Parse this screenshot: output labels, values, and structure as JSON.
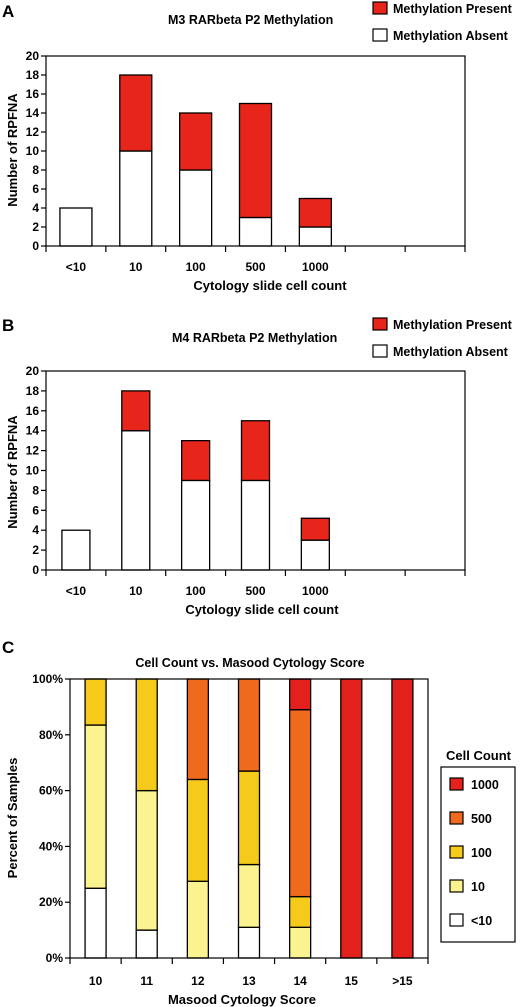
{
  "panels": [
    {
      "letter": "A",
      "chart_data": {
        "type": "bar",
        "stacked": true,
        "title": "M3 RARbeta P2 Methylation",
        "xlabel": "Cytology slide cell count",
        "ylabel": "Number of RPFNA",
        "categories": [
          "<10",
          "10",
          "100",
          "500",
          "1000"
        ],
        "empty_slots": 2,
        "ylim": [
          0,
          20
        ],
        "yticks": [
          "0",
          "2",
          "4",
          "6",
          "8",
          "10",
          "12",
          "14",
          "16",
          "18",
          "20"
        ],
        "legend_position": "top-right",
        "series": [
          {
            "name": "Methylation Absent",
            "color": "#ffffff",
            "values": [
              4,
              10,
              8,
              3,
              2
            ]
          },
          {
            "name": "Methylation Present",
            "color": "#e8251b",
            "values": [
              0,
              8,
              6,
              12,
              3
            ]
          }
        ]
      }
    },
    {
      "letter": "B",
      "chart_data": {
        "type": "bar",
        "stacked": true,
        "title": "M4 RARbeta P2 Methylation",
        "xlabel": "Cytology slide cell count",
        "ylabel": "Number of RPFNA",
        "categories": [
          "<10",
          "10",
          "100",
          "500",
          "1000"
        ],
        "empty_slots": 2,
        "ylim": [
          0,
          20
        ],
        "yticks": [
          "0",
          "2",
          "4",
          "6",
          "8",
          "10",
          "12",
          "14",
          "16",
          "18",
          "20"
        ],
        "legend_position": "top-right",
        "series": [
          {
            "name": "Methylation Absent",
            "color": "#ffffff",
            "values": [
              4,
              14,
              9,
              9,
              3
            ]
          },
          {
            "name": "Methylation Present",
            "color": "#e8251b",
            "values": [
              0,
              4,
              4,
              6,
              2.2
            ]
          }
        ]
      }
    },
    {
      "letter": "C",
      "chart_data": {
        "type": "bar",
        "stacked": true,
        "percent": true,
        "title": "Cell Count vs. Masood Cytology Score",
        "xlabel": "Masood Cytology Score",
        "ylabel": "Percent of Samples",
        "categories": [
          "10",
          "11",
          "12",
          "13",
          "14",
          "15",
          ">15"
        ],
        "ylim": [
          0,
          100
        ],
        "yticks": [
          "0%",
          "20%",
          "40%",
          "60%",
          "80%",
          "100%"
        ],
        "legend_title": "Cell Count",
        "legend_position": "right",
        "series": [
          {
            "name": "<10",
            "color": "#ffffff",
            "values": [
              25,
              10,
              0,
              11,
              0,
              0,
              0
            ]
          },
          {
            "name": "10",
            "color": "#fbf38f",
            "values": [
              58.5,
              50,
              27.5,
              22.5,
              11,
              0,
              0
            ]
          },
          {
            "name": "100",
            "color": "#f5ca1a",
            "values": [
              16.5,
              40,
              36.5,
              33.5,
              11,
              0,
              0
            ]
          },
          {
            "name": "500",
            "color": "#ef6a1c",
            "values": [
              0,
              0,
              36,
              33,
              67,
              0,
              0
            ]
          },
          {
            "name": "1000",
            "color": "#e3211c",
            "values": [
              0,
              0,
              0,
              0,
              11,
              100,
              100
            ]
          }
        ]
      }
    }
  ]
}
